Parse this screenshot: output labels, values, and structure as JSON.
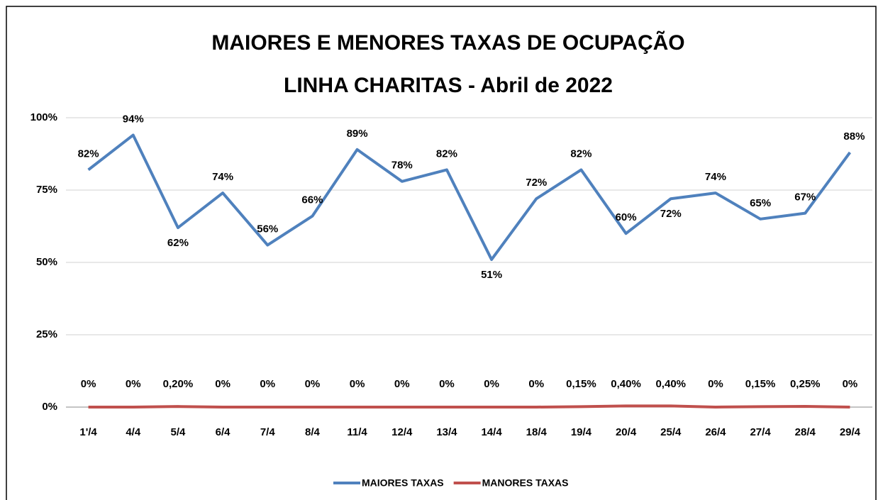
{
  "chart_data": {
    "type": "line",
    "title": "MAIORES E MENORES TAXAS DE OCUPAÇÃO",
    "subtitle": "LINHA CHARITAS - Abril de 2022",
    "categories": [
      "1'/4",
      "4/4",
      "5/4",
      "6/4",
      "7/4",
      "8/4",
      "11/4",
      "12/4",
      "13/4",
      "14/4",
      "18/4",
      "19/4",
      "20/4",
      "25/4",
      "26/4",
      "27/4",
      "28/4",
      "29/4"
    ],
    "series": [
      {
        "name": "MAIORES TAXAS",
        "color": "#4f81bd",
        "values": [
          82,
          94,
          62,
          74,
          56,
          66,
          89,
          78,
          82,
          51,
          72,
          82,
          60,
          72,
          74,
          65,
          67,
          88
        ],
        "value_labels": [
          "82%",
          "94%",
          "62%",
          "74%",
          "56%",
          "66%",
          "89%",
          "78%",
          "82%",
          "51%",
          "72%",
          "82%",
          "60%",
          "72%",
          "74%",
          "65%",
          "67%",
          "88%"
        ]
      },
      {
        "name": "MANORES TAXAS",
        "color": "#c0504d",
        "values": [
          0,
          0,
          0.2,
          0,
          0,
          0,
          0,
          0,
          0,
          0,
          0,
          0.15,
          0.4,
          0.4,
          0,
          0.15,
          0.25,
          0
        ],
        "value_labels": [
          "0%",
          "0%",
          "0,20%",
          "0%",
          "0%",
          "0%",
          "0%",
          "0%",
          "0%",
          "0%",
          "0%",
          "0,15%",
          "0,40%",
          "0,40%",
          "0%",
          "0,15%",
          "0,25%",
          "0%"
        ]
      }
    ],
    "ylim": [
      0,
      100
    ],
    "yticks": [
      {
        "value": 0,
        "label": "0%"
      },
      {
        "value": 25,
        "label": "25%"
      },
      {
        "value": 50,
        "label": "50%"
      },
      {
        "value": 75,
        "label": "75%"
      },
      {
        "value": 100,
        "label": "100%"
      }
    ],
    "grid": true,
    "legend": "bottom"
  }
}
